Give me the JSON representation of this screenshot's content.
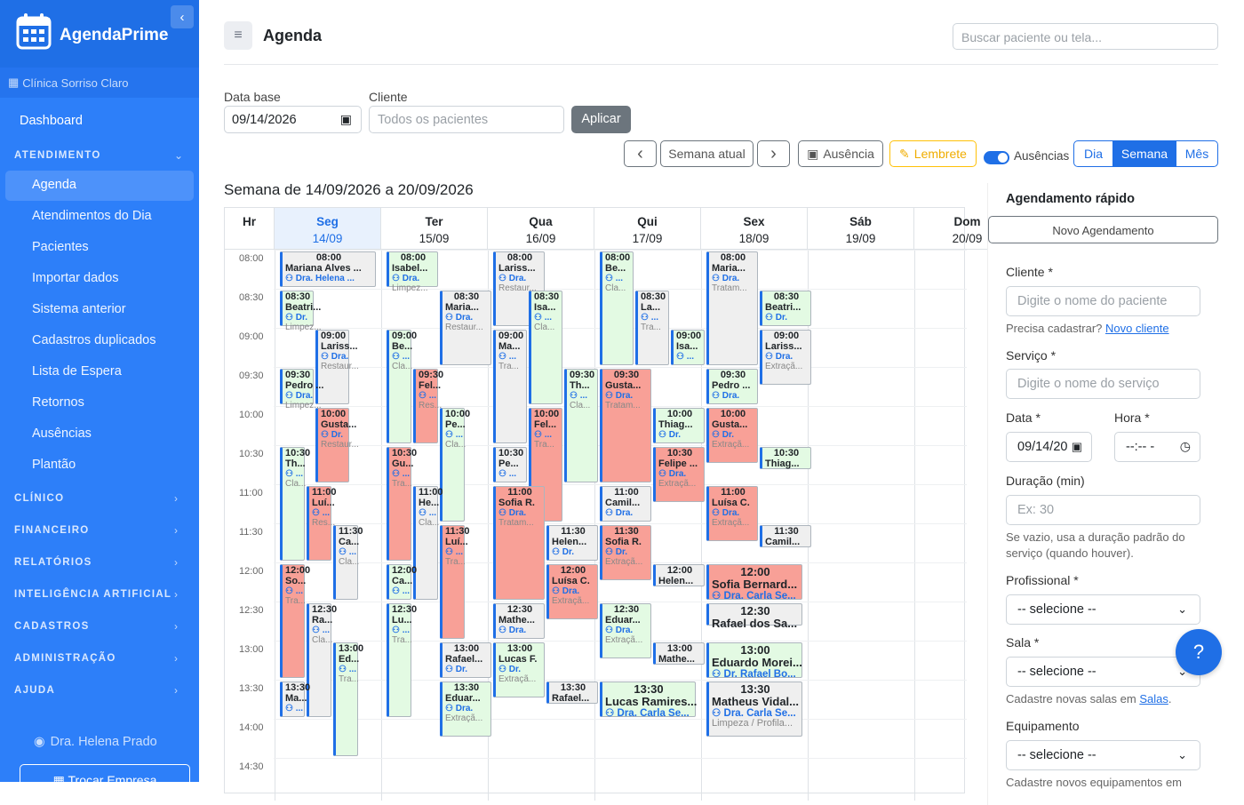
{
  "app": {
    "name": "AgendaPrime",
    "clinic": "Clínica Sorriso Claro"
  },
  "nav": {
    "dashboard": "Dashboard",
    "atendimento": "ATENDIMENTO",
    "items": [
      "Agenda",
      "Atendimentos do Dia",
      "Pacientes",
      "Importar dados",
      "Sistema anterior",
      "Cadastros duplicados",
      "Lista de Espera",
      "Retornos",
      "Ausências",
      "Plantão"
    ],
    "sections": [
      "CLÍNICO",
      "FINANCEIRO",
      "RELATÓRIOS",
      "INTELIGÊNCIA ARTIFICIAL",
      "CADASTROS",
      "ADMINISTRAÇÃO",
      "AJUDA"
    ],
    "user": "Dra. Helena Prado",
    "switch_company": "Trocar Empresa"
  },
  "header": {
    "title": "Agenda",
    "search_placeholder": "Buscar paciente ou tela..."
  },
  "filters": {
    "date_label": "Data base",
    "date_value": "09/14/2026",
    "client_label": "Cliente",
    "client_placeholder": "Todos os pacientes",
    "apply": "Aplicar"
  },
  "toolbar": {
    "prev": "‹",
    "current_week": "Semana atual",
    "next": "›",
    "absence": "Ausência",
    "reminder": "Lembrete",
    "absences_toggle": "Ausências",
    "views": [
      "Dia",
      "Semana",
      "Mês"
    ],
    "active_view": "Semana"
  },
  "week_title": "Semana de 14/09/2026 a 20/09/2026",
  "calendar": {
    "hour_header": "Hr",
    "days": [
      {
        "n": "Seg",
        "d": "14/09"
      },
      {
        "n": "Ter",
        "d": "15/09"
      },
      {
        "n": "Qua",
        "d": "16/09"
      },
      {
        "n": "Qui",
        "d": "17/09"
      },
      {
        "n": "Sex",
        "d": "18/09"
      },
      {
        "n": "Sáb",
        "d": "19/09"
      },
      {
        "n": "Dom",
        "d": "20/09"
      }
    ],
    "times": [
      "08:00",
      "08:30",
      "09:00",
      "09:30",
      "10:00",
      "10:30",
      "11:00",
      "11:30",
      "12:00",
      "12:30",
      "13:00",
      "13:30",
      "14:00",
      "14:30"
    ],
    "events": [
      {
        "day": 0,
        "lane": 0,
        "lanes": 1,
        "start": "08:00",
        "dur": 30,
        "color": "gray",
        "t": "08:00",
        "n": "Mariana Alves ...",
        "p": "Dra. Helena ...",
        "s": ""
      },
      {
        "day": 0,
        "lane": 0,
        "lanes": 3,
        "start": "08:30",
        "dur": 30,
        "color": "green",
        "t": "08:30",
        "n": "Beatri...",
        "p": "Dr.",
        "s": "Limpez..."
      },
      {
        "day": 0,
        "lane": 1,
        "lanes": 3,
        "start": "09:00",
        "dur": 60,
        "color": "gray",
        "t": "09:00",
        "n": "Lariss...",
        "p": "Dra.",
        "s": "Restaur..."
      },
      {
        "day": 0,
        "lane": 0,
        "lanes": 3,
        "start": "09:30",
        "dur": 30,
        "color": "green",
        "t": "09:30",
        "n": "Pedro ...",
        "p": "Dra.",
        "s": "Limpez..."
      },
      {
        "day": 0,
        "lane": 1,
        "lanes": 3,
        "start": "10:00",
        "dur": 60,
        "color": "red",
        "t": "10:00",
        "n": "Gusta...",
        "p": "Dr.",
        "s": "Restaur..."
      },
      {
        "day": 0,
        "lane": 0,
        "lanes": 4,
        "start": "10:30",
        "dur": 90,
        "color": "green",
        "t": "10:30",
        "n": "Th...",
        "p": "...",
        "s": "Cla..."
      },
      {
        "day": 0,
        "lane": 1,
        "lanes": 4,
        "start": "11:00",
        "dur": 60,
        "color": "red",
        "t": "11:00",
        "n": "Luí...",
        "p": "...",
        "s": "Res..."
      },
      {
        "day": 0,
        "lane": 2,
        "lanes": 4,
        "start": "11:30",
        "dur": 60,
        "color": "gray",
        "t": "11:30",
        "n": "Ca...",
        "p": "...",
        "s": "Cla..."
      },
      {
        "day": 0,
        "lane": 0,
        "lanes": 4,
        "start": "12:00",
        "dur": 90,
        "color": "red",
        "t": "12:00",
        "n": "So...",
        "p": "...",
        "s": "Tra..."
      },
      {
        "day": 0,
        "lane": 1,
        "lanes": 4,
        "start": "12:30",
        "dur": 90,
        "color": "gray",
        "t": "12:30",
        "n": "Ra...",
        "p": "...",
        "s": "Cla..."
      },
      {
        "day": 0,
        "lane": 2,
        "lanes": 4,
        "start": "13:00",
        "dur": 90,
        "color": "green",
        "t": "13:00",
        "n": "Ed...",
        "p": "...",
        "s": "Tra..."
      },
      {
        "day": 0,
        "lane": 0,
        "lanes": 4,
        "start": "13:30",
        "dur": 30,
        "color": "gray",
        "t": "13:30",
        "n": "Ma...",
        "p": "...",
        "s": ""
      },
      {
        "day": 1,
        "lane": 0,
        "lanes": 2,
        "start": "08:00",
        "dur": 30,
        "color": "green",
        "t": "08:00",
        "n": "Isabel...",
        "p": "Dra.",
        "s": "Limpez..."
      },
      {
        "day": 1,
        "lane": 1,
        "lanes": 2,
        "start": "08:30",
        "dur": 60,
        "color": "gray",
        "t": "08:30",
        "n": "Maria...",
        "p": "Dra.",
        "s": "Restaur..."
      },
      {
        "day": 1,
        "lane": 0,
        "lanes": 4,
        "start": "09:00",
        "dur": 90,
        "color": "green",
        "t": "09:00",
        "n": "Be...",
        "p": "...",
        "s": "Cla..."
      },
      {
        "day": 1,
        "lane": 1,
        "lanes": 4,
        "start": "09:30",
        "dur": 60,
        "color": "red",
        "t": "09:30",
        "n": "Fel...",
        "p": "...",
        "s": "Res..."
      },
      {
        "day": 1,
        "lane": 2,
        "lanes": 4,
        "start": "10:00",
        "dur": 90,
        "color": "green",
        "t": "10:00",
        "n": "Pe...",
        "p": "...",
        "s": "Cla..."
      },
      {
        "day": 1,
        "lane": 0,
        "lanes": 4,
        "start": "10:30",
        "dur": 90,
        "color": "red",
        "t": "10:30",
        "n": "Gu...",
        "p": "...",
        "s": "Tra..."
      },
      {
        "day": 1,
        "lane": 1,
        "lanes": 4,
        "start": "11:00",
        "dur": 90,
        "color": "gray",
        "t": "11:00",
        "n": "He...",
        "p": "...",
        "s": "Cla..."
      },
      {
        "day": 1,
        "lane": 2,
        "lanes": 4,
        "start": "11:30",
        "dur": 90,
        "color": "red",
        "t": "11:30",
        "n": "Luí...",
        "p": "...",
        "s": "Tra..."
      },
      {
        "day": 1,
        "lane": 0,
        "lanes": 4,
        "start": "12:00",
        "dur": 30,
        "color": "green",
        "t": "12:00",
        "n": "Ca...",
        "p": "...",
        "s": ""
      },
      {
        "day": 1,
        "lane": 0,
        "lanes": 4,
        "start": "12:30",
        "dur": 90,
        "color": "green",
        "t": "12:30",
        "n": "Lu...",
        "p": "...",
        "s": "Tra..."
      },
      {
        "day": 1,
        "lane": 1,
        "lanes": 2,
        "start": "13:00",
        "dur": 30,
        "color": "gray",
        "t": "13:00",
        "n": "Rafael...",
        "p": "Dr.",
        "s": ""
      },
      {
        "day": 1,
        "lane": 1,
        "lanes": 2,
        "start": "13:30",
        "dur": 45,
        "color": "green",
        "t": "13:30",
        "n": "Eduar...",
        "p": "Dra.",
        "s": "Extraçã..."
      },
      {
        "day": 2,
        "lane": 0,
        "lanes": 2,
        "start": "08:00",
        "dur": 60,
        "color": "gray",
        "t": "08:00",
        "n": "Lariss...",
        "p": "Dra.",
        "s": "Restaur..."
      },
      {
        "day": 2,
        "lane": 1,
        "lanes": 3,
        "start": "08:30",
        "dur": 90,
        "color": "green",
        "t": "08:30",
        "n": "Isa...",
        "p": "...",
        "s": "Cla..."
      },
      {
        "day": 2,
        "lane": 0,
        "lanes": 3,
        "start": "09:00",
        "dur": 90,
        "color": "gray",
        "t": "09:00",
        "n": "Ma...",
        "p": "...",
        "s": "Tra..."
      },
      {
        "day": 2,
        "lane": 2,
        "lanes": 3,
        "start": "09:30",
        "dur": 90,
        "color": "green",
        "t": "09:30",
        "n": "Th...",
        "p": "...",
        "s": "Cla..."
      },
      {
        "day": 2,
        "lane": 1,
        "lanes": 3,
        "start": "10:00",
        "dur": 90,
        "color": "red",
        "t": "10:00",
        "n": "Fel...",
        "p": "...",
        "s": "Tra..."
      },
      {
        "day": 2,
        "lane": 0,
        "lanes": 3,
        "start": "10:30",
        "dur": 30,
        "color": "gray",
        "t": "10:30",
        "n": "Pe...",
        "p": "...",
        "s": ""
      },
      {
        "day": 2,
        "lane": 0,
        "lanes": 2,
        "start": "11:00",
        "dur": 90,
        "color": "red",
        "t": "11:00",
        "n": "Sofia R.",
        "p": "Dra.",
        "s": "Tratam..."
      },
      {
        "day": 2,
        "lane": 1,
        "lanes": 2,
        "start": "11:30",
        "dur": 30,
        "color": "gray",
        "t": "11:30",
        "n": "Helen...",
        "p": "Dr.",
        "s": ""
      },
      {
        "day": 2,
        "lane": 1,
        "lanes": 2,
        "start": "12:00",
        "dur": 45,
        "color": "red",
        "t": "12:00",
        "n": "Luísa C.",
        "p": "Dra.",
        "s": "Extraçã..."
      },
      {
        "day": 2,
        "lane": 0,
        "lanes": 2,
        "start": "12:30",
        "dur": 30,
        "color": "gray",
        "t": "12:30",
        "n": "Mathe...",
        "p": "Dra.",
        "s": ""
      },
      {
        "day": 2,
        "lane": 0,
        "lanes": 2,
        "start": "13:00",
        "dur": 45,
        "color": "green",
        "t": "13:00",
        "n": "Lucas F.",
        "p": "Dr.",
        "s": "Extraçã..."
      },
      {
        "day": 2,
        "lane": 1,
        "lanes": 2,
        "start": "13:30",
        "dur": 20,
        "color": "gray",
        "t": "13:30",
        "n": "Rafael...",
        "p": "",
        "s": ""
      },
      {
        "day": 3,
        "lane": 0,
        "lanes": 3,
        "start": "08:00",
        "dur": 90,
        "color": "green",
        "t": "08:00",
        "n": "Be...",
        "p": "...",
        "s": "Cla..."
      },
      {
        "day": 3,
        "lane": 1,
        "lanes": 3,
        "start": "08:30",
        "dur": 60,
        "color": "gray",
        "t": "08:30",
        "n": "La...",
        "p": "...",
        "s": "Tra..."
      },
      {
        "day": 3,
        "lane": 2,
        "lanes": 3,
        "start": "09:00",
        "dur": 30,
        "color": "green",
        "t": "09:00",
        "n": "Isa...",
        "p": "...",
        "s": ""
      },
      {
        "day": 3,
        "lane": 0,
        "lanes": 2,
        "start": "09:30",
        "dur": 90,
        "color": "red",
        "t": "09:30",
        "n": "Gusta...",
        "p": "Dra.",
        "s": "Tratam..."
      },
      {
        "day": 3,
        "lane": 1,
        "lanes": 2,
        "start": "10:00",
        "dur": 30,
        "color": "green",
        "t": "10:00",
        "n": "Thiag...",
        "p": "Dr.",
        "s": ""
      },
      {
        "day": 3,
        "lane": 1,
        "lanes": 2,
        "start": "10:30",
        "dur": 45,
        "color": "red",
        "t": "10:30",
        "n": "Felipe ...",
        "p": "Dra.",
        "s": "Extraçã..."
      },
      {
        "day": 3,
        "lane": 0,
        "lanes": 2,
        "start": "11:00",
        "dur": 30,
        "color": "gray",
        "t": "11:00",
        "n": "Camil...",
        "p": "Dra.",
        "s": ""
      },
      {
        "day": 3,
        "lane": 0,
        "lanes": 2,
        "start": "11:30",
        "dur": 45,
        "color": "red",
        "t": "11:30",
        "n": "Sofia R.",
        "p": "Dr.",
        "s": "Extraçã..."
      },
      {
        "day": 3,
        "lane": 1,
        "lanes": 2,
        "start": "12:00",
        "dur": 20,
        "color": "gray",
        "t": "12:00",
        "n": "Helen...",
        "p": "",
        "s": ""
      },
      {
        "day": 3,
        "lane": 0,
        "lanes": 2,
        "start": "12:30",
        "dur": 45,
        "color": "green",
        "t": "12:30",
        "n": "Eduar...",
        "p": "Dra.",
        "s": "Extraçã..."
      },
      {
        "day": 3,
        "lane": 1,
        "lanes": 2,
        "start": "13:00",
        "dur": 20,
        "color": "gray",
        "t": "13:00",
        "n": "Mathe...",
        "p": "",
        "s": ""
      },
      {
        "day": 3,
        "lane": 0,
        "lanes": 1,
        "start": "13:30",
        "dur": 30,
        "color": "green",
        "t": "13:30",
        "n": "Lucas Ramires...",
        "p": "Dra. Carla Se...",
        "s": "",
        "big": true
      },
      {
        "day": 4,
        "lane": 0,
        "lanes": 2,
        "start": "08:00",
        "dur": 90,
        "color": "gray",
        "t": "08:00",
        "n": "Maria...",
        "p": "Dra.",
        "s": "Tratam..."
      },
      {
        "day": 4,
        "lane": 1,
        "lanes": 2,
        "start": "08:30",
        "dur": 30,
        "color": "green",
        "t": "08:30",
        "n": "Beatri...",
        "p": "Dr.",
        "s": ""
      },
      {
        "day": 4,
        "lane": 1,
        "lanes": 2,
        "start": "09:00",
        "dur": 45,
        "color": "gray",
        "t": "09:00",
        "n": "Lariss...",
        "p": "Dra.",
        "s": "Extraçã..."
      },
      {
        "day": 4,
        "lane": 0,
        "lanes": 2,
        "start": "09:30",
        "dur": 30,
        "color": "green",
        "t": "09:30",
        "n": "Pedro ...",
        "p": "Dra.",
        "s": ""
      },
      {
        "day": 4,
        "lane": 0,
        "lanes": 2,
        "start": "10:00",
        "dur": 45,
        "color": "red",
        "t": "10:00",
        "n": "Gusta...",
        "p": "Dr.",
        "s": "Extraçã..."
      },
      {
        "day": 4,
        "lane": 1,
        "lanes": 2,
        "start": "10:30",
        "dur": 20,
        "color": "green",
        "t": "10:30",
        "n": "Thiag...",
        "p": "",
        "s": ""
      },
      {
        "day": 4,
        "lane": 0,
        "lanes": 2,
        "start": "11:00",
        "dur": 45,
        "color": "red",
        "t": "11:00",
        "n": "Luísa C.",
        "p": "Dra.",
        "s": "Extraçã..."
      },
      {
        "day": 4,
        "lane": 1,
        "lanes": 2,
        "start": "11:30",
        "dur": 20,
        "color": "gray",
        "t": "11:30",
        "n": "Camil...",
        "p": "",
        "s": ""
      },
      {
        "day": 4,
        "lane": 0,
        "lanes": 1,
        "start": "12:00",
        "dur": 30,
        "color": "red",
        "t": "12:00",
        "n": "Sofia Bernard...",
        "p": "Dra. Carla Se...",
        "s": "",
        "big": true
      },
      {
        "day": 4,
        "lane": 0,
        "lanes": 1,
        "start": "12:30",
        "dur": 20,
        "color": "gray",
        "t": "12:30",
        "n": "Rafael dos Sa...",
        "p": "",
        "s": "",
        "big": true
      },
      {
        "day": 4,
        "lane": 0,
        "lanes": 1,
        "start": "13:00",
        "dur": 30,
        "color": "green",
        "t": "13:00",
        "n": "Eduardo Morei...",
        "p": "Dr. Rafael Bo...",
        "s": "",
        "big": true
      },
      {
        "day": 4,
        "lane": 0,
        "lanes": 1,
        "start": "13:30",
        "dur": 45,
        "color": "gray",
        "t": "13:30",
        "n": "Matheus Vidal...",
        "p": "Dra. Carla Se...",
        "s": "Limpeza / Profila...",
        "big": true
      }
    ]
  },
  "quick": {
    "title": "Agendamento rápido",
    "new_btn": "Novo Agendamento",
    "client_label": "Cliente *",
    "client_placeholder": "Digite o nome do paciente",
    "need_register": "Precisa cadastrar?",
    "new_client": "Novo cliente",
    "service_label": "Serviço *",
    "service_placeholder": "Digite o nome do serviço",
    "date_label": "Data *",
    "date_value": "09/14/20",
    "time_label": "Hora *",
    "time_value": "--:-- -",
    "duration_label": "Duração (min)",
    "duration_placeholder": "Ex: 30",
    "duration_hint": "Se vazio, usa a duração padrão do serviço (quando houver).",
    "professional_label": "Profissional *",
    "professional_value": "-- selecione --",
    "room_label": "Sala *",
    "room_value": "-- selecione --",
    "room_hint": "Cadastre novas salas em",
    "room_link": "Salas",
    "equipment_label": "Equipamento",
    "equipment_value": "-- selecione --",
    "equipment_hint": "Cadastre novos equipamentos em"
  },
  "help": "?",
  "colors": {
    "primary": "#1f6fe6",
    "sidebar": "#2d7ff9",
    "green": "#e3fae3",
    "red": "#f8a097",
    "gray": "#efefef"
  }
}
